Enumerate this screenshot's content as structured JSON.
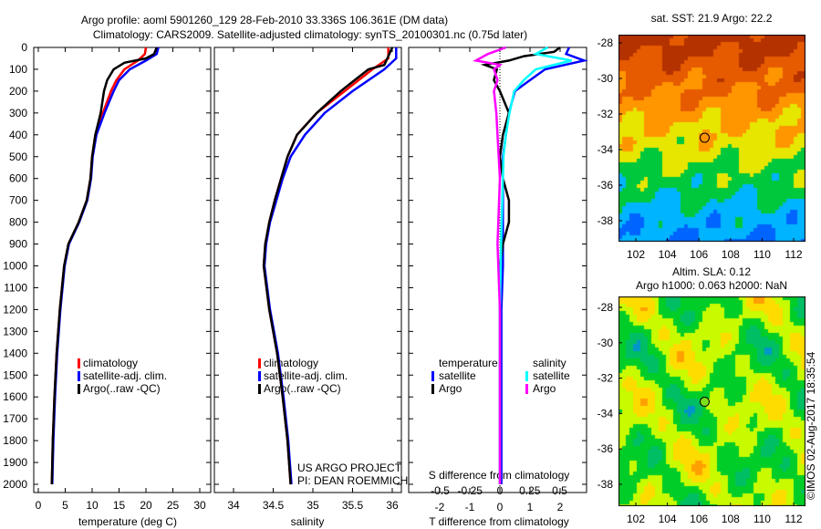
{
  "chart_data": [
    {
      "type": "line",
      "title": "Argo profile: aoml 5901260_129 28-Feb-2010 33.336S 106.361E (DM data)",
      "subtitle": "Climatology: CARS2009. Satellite-adjusted climatology: synTS_20100301.nc (0.75d later)",
      "xlabel": "temperature (deg C)",
      "xlim": [
        -1.5,
        32
      ],
      "xticks": [
        0,
        5,
        10,
        15,
        20,
        25,
        30
      ],
      "ylim": [
        0,
        2040
      ],
      "yticks": [
        0,
        100,
        200,
        300,
        400,
        500,
        600,
        700,
        800,
        900,
        1000,
        1100,
        1200,
        1300,
        1400,
        1500,
        1600,
        1700,
        1800,
        1900,
        2000
      ],
      "legend": [
        "climatology",
        "satellite-adj. clim.",
        "Argo(..raw -QC)"
      ],
      "series": [
        {
          "name": "climatology",
          "color": "#ff0000",
          "depth": [
            0,
            30,
            60,
            100,
            150,
            200,
            300,
            400,
            500,
            600,
            700,
            800,
            900,
            1000,
            1200,
            1400,
            1600,
            1800,
            2000
          ],
          "values": [
            20,
            19.8,
            18.5,
            16,
            14.5,
            13.5,
            12,
            10.6,
            10,
            9.7,
            9,
            7.5,
            5.6,
            4.8,
            4,
            3.4,
            3,
            2.7,
            2.5
          ]
        },
        {
          "name": "satellite-adj. clim.",
          "color": "#0000ff",
          "depth": [
            0,
            30,
            60,
            100,
            150,
            200,
            300,
            400,
            500,
            600,
            700,
            800,
            900,
            1000,
            1200,
            1400,
            1600,
            1800,
            2000
          ],
          "values": [
            22.3,
            22,
            20,
            17,
            15,
            14,
            12.3,
            10.8,
            10.1,
            9.8,
            9.1,
            7.6,
            5.7,
            4.9,
            4.1,
            3.5,
            3.1,
            2.8,
            2.6
          ]
        },
        {
          "name": "Argo(..raw -QC)",
          "color": "#000000",
          "depth": [
            0,
            30,
            50,
            70,
            100,
            150,
            200,
            300,
            400,
            500,
            600,
            700,
            800,
            900,
            1000,
            1200,
            1400,
            1600,
            1800,
            2000
          ],
          "values": [
            22,
            21.5,
            20,
            16,
            14,
            12.8,
            12.2,
            11.6,
            10.6,
            10,
            9.7,
            9,
            7.5,
            5.6,
            4.8,
            4,
            3.4,
            3,
            2.7,
            2.5
          ]
        }
      ]
    },
    {
      "type": "line",
      "xlabel": "salinity",
      "xlim": [
        33.8,
        36.15
      ],
      "xticks": [
        34,
        34.5,
        35,
        35.5,
        36
      ],
      "legend": [
        "climatology",
        "satellite-adj. clim.",
        "Argo(..raw -QC)"
      ],
      "annotation": [
        "US ARGO PROJECT",
        "PI: DEAN ROEMMICH"
      ],
      "series": [
        {
          "name": "climatology",
          "color": "#ff0000",
          "depth": [
            0,
            50,
            100,
            200,
            300,
            400,
            500,
            600,
            700,
            800,
            900,
            1000,
            1200,
            1400,
            1600,
            1800,
            2000
          ],
          "values": [
            35.95,
            35.95,
            35.75,
            35.4,
            35.05,
            34.8,
            34.68,
            34.6,
            34.52,
            34.45,
            34.4,
            34.38,
            34.45,
            34.55,
            34.62,
            34.68,
            34.72
          ]
        },
        {
          "name": "satellite-adj. clim.",
          "color": "#0000ff",
          "depth": [
            0,
            50,
            100,
            200,
            300,
            400,
            500,
            600,
            700,
            800,
            900,
            1000,
            1200,
            1400,
            1600,
            1800,
            2000
          ],
          "values": [
            36.05,
            36.05,
            35.9,
            35.5,
            35.15,
            34.9,
            34.72,
            34.62,
            34.54,
            34.46,
            34.41,
            34.39,
            34.46,
            34.56,
            34.63,
            34.69,
            34.73
          ]
        },
        {
          "name": "Argo(..raw -QC)",
          "color": "#000000",
          "depth": [
            0,
            40,
            80,
            100,
            200,
            300,
            400,
            500,
            600,
            700,
            800,
            900,
            1000,
            1200,
            1400,
            1600,
            1800,
            2000
          ],
          "values": [
            36.0,
            35.95,
            35.9,
            35.7,
            35.35,
            35.05,
            34.8,
            34.68,
            34.6,
            34.52,
            34.45,
            34.4,
            34.38,
            34.45,
            34.55,
            34.62,
            34.68,
            34.72
          ]
        }
      ]
    },
    {
      "type": "line",
      "xlabel": "T difference from climatology",
      "xlabel2": "S difference from climatology",
      "xlim": [
        -3.2,
        3.0
      ],
      "xticks": [
        -2,
        -1,
        0,
        1,
        2
      ],
      "xticks2": [
        -0.5,
        -0.25,
        0,
        0.25,
        0.5
      ],
      "legend_headers": [
        "temperature",
        "salinity"
      ],
      "legend": [
        "satellite",
        "Argo",
        "satellite",
        "Argo"
      ],
      "series": [
        {
          "name": "temperature satellite",
          "color": "#0000ff",
          "depth": [
            0,
            30,
            60,
            100,
            150,
            200,
            300,
            400,
            500,
            600,
            700,
            800,
            900,
            1000,
            1200,
            1500,
            2000
          ],
          "values": [
            2.3,
            2.2,
            2.8,
            1.5,
            1.0,
            0.5,
            0.3,
            0.2,
            0.1,
            0.1,
            0.1,
            0.1,
            0.1,
            0.1,
            0.05,
            0.05,
            0.05
          ]
        },
        {
          "name": "temperature Argo",
          "color": "#000000",
          "depth": [
            0,
            20,
            40,
            60,
            80,
            100,
            150,
            200,
            300,
            400,
            500,
            600,
            700,
            800,
            900,
            1000,
            1200,
            2000
          ],
          "values": [
            2.0,
            1.8,
            0.8,
            0.3,
            -0.5,
            -0.1,
            -0.2,
            0,
            0.3,
            0.1,
            0,
            0.1,
            0.3,
            0.3,
            0.1,
            0,
            0,
            0
          ]
        },
        {
          "name": "salinity satellite",
          "color": "#00ffff",
          "depth": [
            0,
            30,
            60,
            100,
            150,
            200,
            300,
            400,
            500,
            700,
            900,
            1200,
            2000
          ],
          "values": [
            0.4,
            0.3,
            0.6,
            0.3,
            0.2,
            0.12,
            0.08,
            0.05,
            0.03,
            0.02,
            0.01,
            0,
            0
          ]
        },
        {
          "name": "salinity Argo",
          "color": "#ff00ff",
          "depth": [
            0,
            30,
            60,
            80,
            100,
            150,
            200,
            300,
            400,
            600,
            900,
            1200,
            2000
          ],
          "values": [
            0.05,
            -0.1,
            -0.2,
            0.0,
            -0.05,
            -0.02,
            -0.05,
            -0.03,
            -0.02,
            0,
            -0.02,
            0,
            0
          ]
        }
      ]
    },
    {
      "type": "heatmap",
      "title": "sat. SST: 21.9 Argo: 22.2",
      "xticks": [
        102,
        104,
        106,
        108,
        110,
        112
      ],
      "yticks": [
        -28,
        -30,
        -32,
        -34,
        -36,
        -38
      ],
      "marker": [
        106.361,
        -33.336
      ]
    },
    {
      "type": "heatmap",
      "title": "Altim. SLA: 0.12",
      "subtitle": "Argo h1000: 0.063 h2000: NaN",
      "xticks": [
        102,
        104,
        106,
        108,
        110,
        112
      ],
      "yticks": [
        -28,
        -30,
        -32,
        -34,
        -36,
        -38
      ],
      "marker": [
        106.361,
        -33.336
      ]
    }
  ],
  "credit": "©IMOS 02-Aug-2017 18:35:54"
}
